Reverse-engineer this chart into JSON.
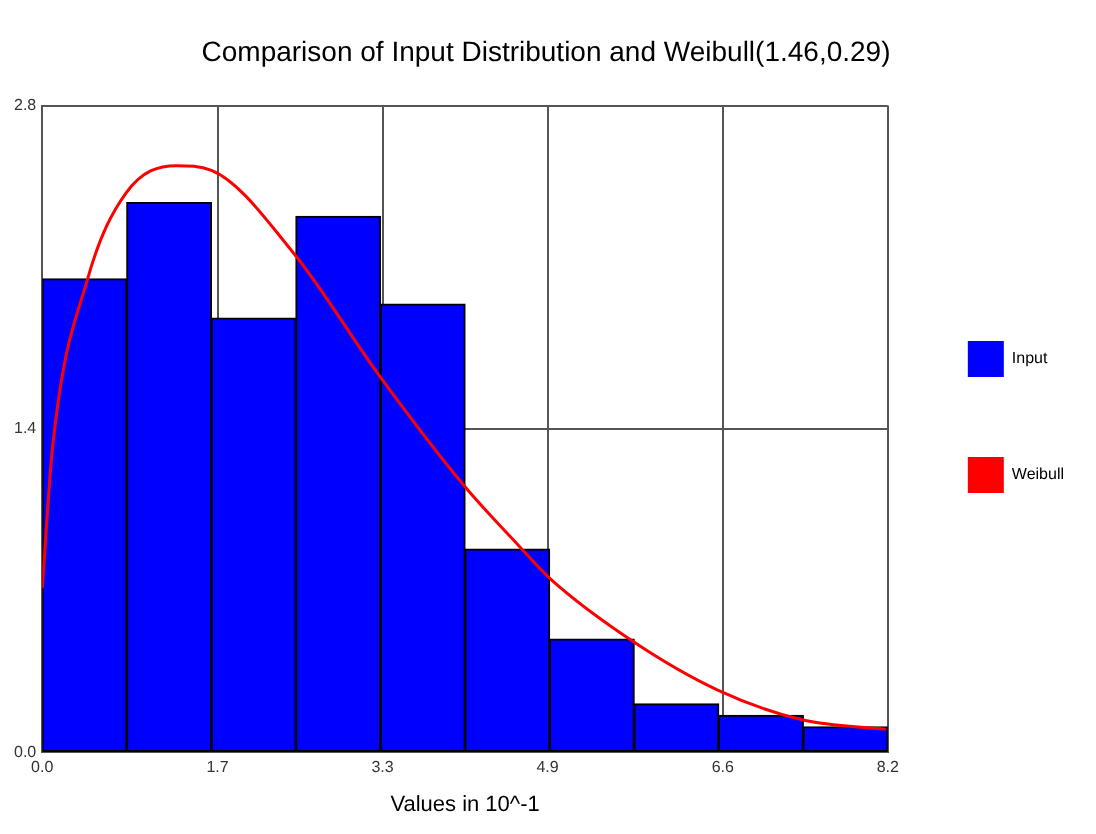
{
  "chart_data": {
    "type": "histogram",
    "title": "Comparison of Input Distribution and Weibull(1.46,0.29)",
    "xlabel": "Values in 10^-1",
    "bins": [
      0,
      0.82,
      1.64,
      2.46,
      3.28,
      4.1,
      4.92,
      5.74,
      6.56,
      7.38,
      8.2
    ],
    "series": [
      {
        "name": "Input",
        "color": "#0000ff",
        "values": [
          2.05,
          2.38,
          1.88,
          2.32,
          1.94,
          0.88,
          0.49,
          0.21,
          0.16,
          0.11
        ]
      },
      {
        "name": "Weibull",
        "type": "line",
        "color": "#ff0000",
        "x": [
          0,
          0.1,
          0.44,
          0.81,
          1.3,
          1.64,
          2.44,
          3.27,
          4.1,
          4.59,
          4.93,
          5.73,
          6.55,
          7.38,
          8.18
        ],
        "values": [
          0.71,
          1.32,
          2.05,
          2.42,
          2.54,
          2.52,
          2.16,
          1.63,
          1.15,
          0.91,
          0.75,
          0.48,
          0.27,
          0.14,
          0.1
        ]
      }
    ],
    "xlim": [
      0,
      8.2
    ],
    "xticks": [
      {
        "value": 0,
        "label": "0.0"
      },
      1.7,
      3.3,
      4.9,
      6.6,
      8.2
    ],
    "ylim": [
      0,
      2.8
    ],
    "yticks": [
      {
        "value": 0,
        "label": "0.0"
      },
      1.4,
      2.8
    ],
    "grid": true,
    "legend": "right",
    "marker": "none"
  }
}
